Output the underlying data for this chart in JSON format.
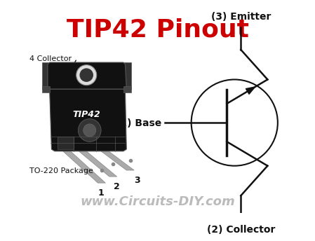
{
  "title": "TIP42 Pinout",
  "title_color": "#cc0000",
  "title_fontsize": 26,
  "bg_color": "#ffffff",
  "watermark": "www.Circuits-DIY.com",
  "watermark_color": "#bbbbbb",
  "watermark_fontsize": 13,
  "label_4collector": "4 Collector",
  "label_to220": "TO-220 Package",
  "label_base": "(1) Base",
  "label_emitter": "(3) Emitter",
  "label_collector": "(2) Collector",
  "label_1": "1",
  "label_2": "2",
  "label_3": "3",
  "body_color": "#111111",
  "line_color": "#111111",
  "text_color": "#111111",
  "pin_color": "#888888"
}
